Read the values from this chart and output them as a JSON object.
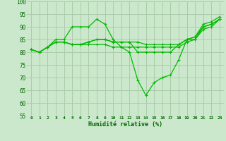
{
  "bg_color": "#cce8cc",
  "grid_color": "#aaccaa",
  "line_color": "#00bb00",
  "xlabel": "Humidité relative (%)",
  "ylim": [
    55,
    100
  ],
  "xlim": [
    -0.5,
    23.5
  ],
  "yticks": [
    55,
    60,
    65,
    70,
    75,
    80,
    85,
    90,
    95,
    100
  ],
  "xticks": [
    0,
    1,
    2,
    3,
    4,
    5,
    6,
    7,
    8,
    9,
    10,
    11,
    12,
    13,
    14,
    15,
    16,
    17,
    18,
    19,
    20,
    21,
    22,
    23
  ],
  "series": [
    [
      81,
      80,
      82,
      85,
      85,
      90,
      90,
      90,
      93,
      91,
      85,
      82,
      80,
      69,
      63,
      68,
      70,
      71,
      77,
      85,
      86,
      91,
      92,
      94
    ],
    [
      81,
      80,
      82,
      84,
      84,
      83,
      83,
      84,
      85,
      85,
      84,
      84,
      84,
      80,
      80,
      80,
      80,
      80,
      83,
      85,
      85,
      90,
      91,
      93
    ],
    [
      81,
      80,
      82,
      84,
      84,
      83,
      83,
      84,
      85,
      85,
      84,
      84,
      84,
      84,
      83,
      83,
      83,
      83,
      83,
      85,
      86,
      90,
      91,
      93
    ],
    [
      81,
      80,
      82,
      84,
      84,
      83,
      83,
      83,
      83,
      83,
      82,
      82,
      82,
      82,
      82,
      82,
      82,
      82,
      82,
      84,
      85,
      89,
      90,
      93
    ]
  ]
}
